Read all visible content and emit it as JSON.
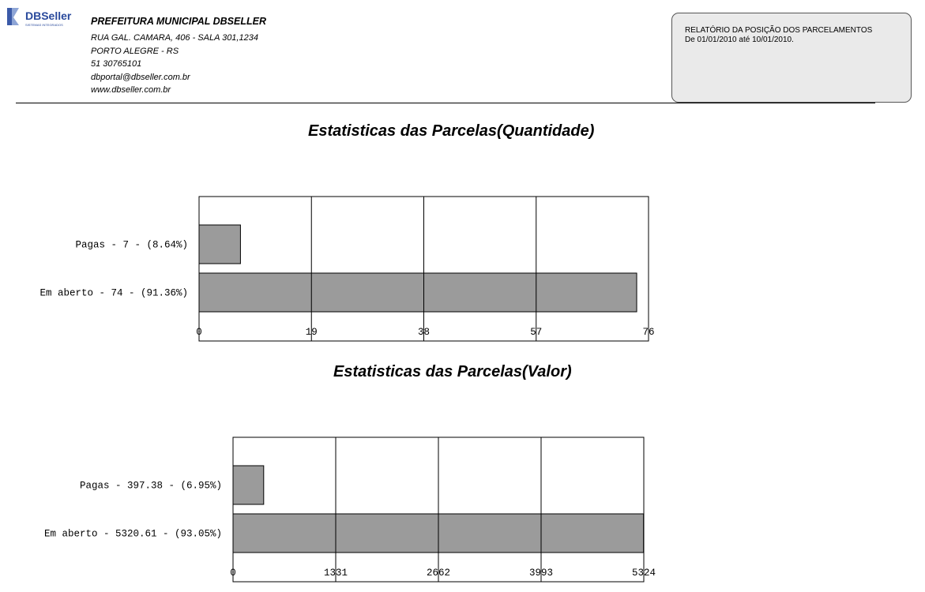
{
  "header": {
    "logo_text": "DBSeller",
    "org_name": "PREFEITURA MUNICIPAL DBSELLER",
    "address": "RUA GAL. CAMARA, 406 - SALA 301,1234",
    "city": "PORTO ALEGRE - RS",
    "phone": "51 30765101",
    "email": "dbportal@dbseller.com.br",
    "website": "www.dbseller.com.br"
  },
  "report": {
    "title": "RELATÓRIO DA POSIÇÃO DOS PARCELAMENTOS",
    "period": "De 01/01/2010 até 10/01/2010."
  },
  "chart_data": [
    {
      "type": "bar",
      "orientation": "horizontal",
      "title": "Estatisticas das Parcelas(Quantidade)",
      "categories": [
        "Pagas - 7 - (8.64%)",
        "Em aberto - 74 - (91.36%)"
      ],
      "values": [
        7,
        74
      ],
      "xticks": [
        "0",
        "19",
        "38",
        "57",
        "76"
      ],
      "xlim": [
        0,
        76
      ],
      "grid": true,
      "bar_color": "#9b9b9b"
    },
    {
      "type": "bar",
      "orientation": "horizontal",
      "title": "Estatisticas das Parcelas(Valor)",
      "categories": [
        "Pagas - 397.38 - (6.95%)",
        "Em aberto - 5320.61 - (93.05%)"
      ],
      "values": [
        397.38,
        5320.61
      ],
      "xticks": [
        "0",
        "1331",
        "2662",
        "3993",
        "5324"
      ],
      "xlim": [
        0,
        5324
      ],
      "grid": true,
      "bar_color": "#9b9b9b"
    }
  ]
}
